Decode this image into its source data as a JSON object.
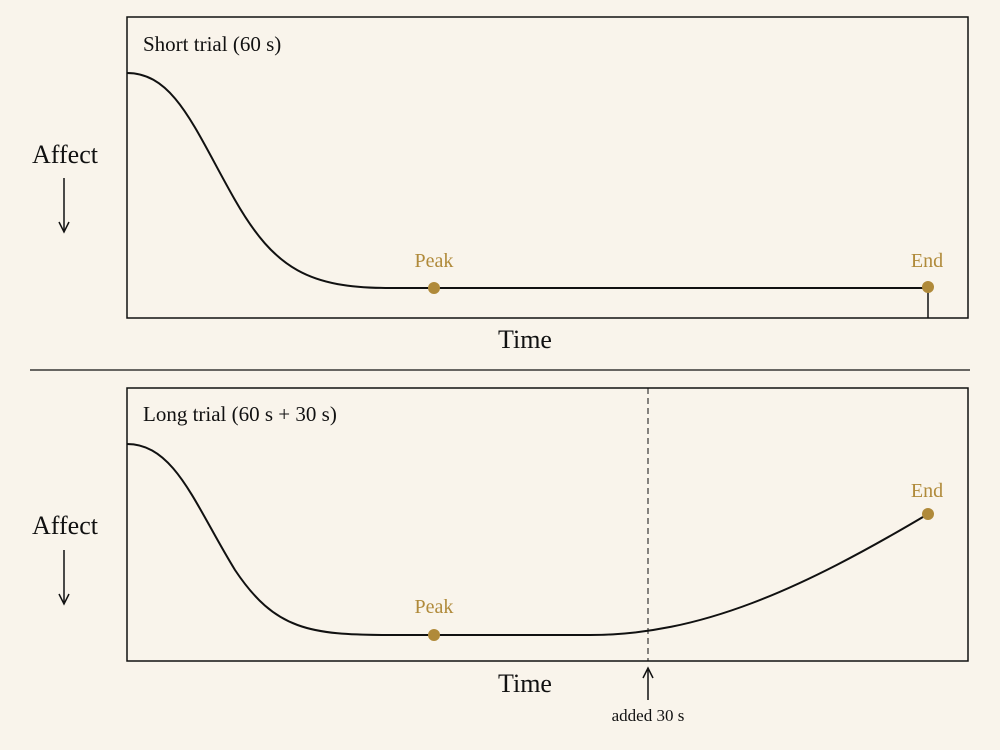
{
  "panels": [
    {
      "title": "Short trial (60 s)",
      "y_label": "Affect",
      "x_label": "Time",
      "peak_label": "Peak",
      "end_label": "End"
    },
    {
      "title": "Long trial (60 s + 30 s)",
      "y_label": "Affect",
      "x_label": "Time",
      "peak_label": "Peak",
      "end_label": "End",
      "annotation": "added 30 s"
    }
  ]
}
